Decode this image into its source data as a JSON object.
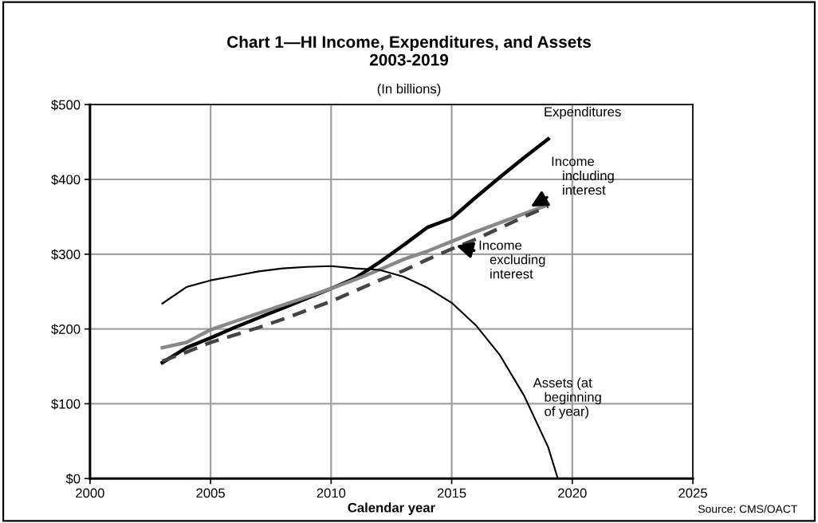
{
  "chart_data": {
    "type": "line",
    "title": "Chart 1—HI Income, Expenditures, and Assets\n2003-2019",
    "subtitle": "(In billions)",
    "xlabel": "Calendar year",
    "x": [
      2003,
      2004,
      2005,
      2006,
      2007,
      2008,
      2009,
      2010,
      2011,
      2012,
      2013,
      2014,
      2015,
      2016,
      2017,
      2018,
      2019
    ],
    "series": [
      {
        "color": "#000000",
        "values": [
          155,
          175,
          188,
          202,
          215,
          228,
          241,
          254,
          268,
          289,
          312,
          336,
          348,
          376,
          403,
          429,
          454
        ]
      },
      {
        "color": "#888888",
        "values": [
          175,
          182,
          199,
          210,
          221,
          232,
          243,
          254,
          266,
          279,
          293,
          304,
          317,
          330,
          342,
          354,
          366
        ]
      },
      {
        "color": "#444444",
        "line_style": "dashed",
        "values": [
          157,
          169,
          182,
          192,
          202,
          213,
          225,
          237,
          251,
          265,
          278,
          293,
          307,
          320,
          335,
          350,
          364
        ]
      },
      {
        "color": "#000000",
        "x": [
          2003,
          2004,
          2005,
          2006,
          2007,
          2008,
          2009,
          2010,
          2011,
          2012,
          2013,
          2014,
          2015,
          2016,
          2017,
          2018,
          2019,
          2019.4
        ],
        "values": [
          234,
          256,
          265,
          271,
          277,
          281,
          283,
          284,
          281,
          279,
          270,
          255,
          235,
          205,
          165,
          111,
          42,
          0
        ]
      }
    ],
    "xlim": [
      2000,
      2025
    ],
    "xticks": [
      2000,
      2005,
      2010,
      2015,
      2020,
      2025
    ],
    "ylim": [
      0,
      500
    ],
    "yticks": [
      {
        "value": 0,
        "label": "$0"
      },
      {
        "value": 100,
        "label": "$100"
      },
      {
        "value": 200,
        "label": "$200"
      },
      {
        "value": 300,
        "label": "$300"
      },
      {
        "value": 400,
        "label": "$400"
      },
      {
        "value": 500,
        "label": "$500"
      }
    ],
    "grid": true,
    "legend": false,
    "marker": "none",
    "annotations": [
      {
        "text": "Expenditures",
        "x": 2019,
        "y": 454
      },
      {
        "text": "Income\n   including\n   interest",
        "x": 2018.2,
        "y": 362
      },
      {
        "text": "Income\n   excluding\n   interest",
        "x": 2015.1,
        "y": 312
      },
      "Assets (at\n   beginning\n   of year)",
      "Source: CMS/OACT"
    ]
  }
}
